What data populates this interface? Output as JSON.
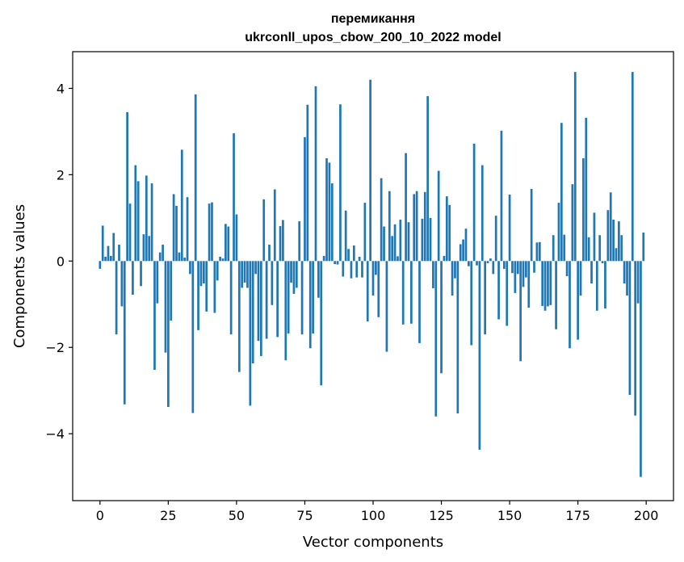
{
  "chart_data": {
    "type": "bar",
    "title": [
      "перемикання",
      "ukrconll_upos_cbow_200_10_2022 model"
    ],
    "xlabel": "Vector components",
    "ylabel": "Components values",
    "xlim": [
      -10,
      210
    ],
    "ylim": [
      -5.55,
      4.85
    ],
    "xticks": [
      0,
      25,
      50,
      75,
      100,
      125,
      150,
      175,
      200
    ],
    "xtick_labels": [
      "0",
      "25",
      "50",
      "75",
      "100",
      "125",
      "150",
      "175",
      "200"
    ],
    "yticks": [
      -4,
      -2,
      0,
      2,
      4
    ],
    "ytick_labels": [
      "−4",
      "−2",
      "0",
      "2",
      "4"
    ],
    "bar_color": "#1f77b4",
    "grid": false,
    "x": [
      0,
      1,
      2,
      3,
      4,
      5,
      6,
      7,
      8,
      9,
      10,
      11,
      12,
      13,
      14,
      15,
      16,
      17,
      18,
      19,
      20,
      21,
      22,
      23,
      24,
      25,
      26,
      27,
      28,
      29,
      30,
      31,
      32,
      33,
      34,
      35,
      36,
      37,
      38,
      39,
      40,
      41,
      42,
      43,
      44,
      45,
      46,
      47,
      48,
      49,
      50,
      51,
      52,
      53,
      54,
      55,
      56,
      57,
      58,
      59,
      60,
      61,
      62,
      63,
      64,
      65,
      66,
      67,
      68,
      69,
      70,
      71,
      72,
      73,
      74,
      75,
      76,
      77,
      78,
      79,
      80,
      81,
      82,
      83,
      84,
      85,
      86,
      87,
      88,
      89,
      90,
      91,
      92,
      93,
      94,
      95,
      96,
      97,
      98,
      99,
      100,
      101,
      102,
      103,
      104,
      105,
      106,
      107,
      108,
      109,
      110,
      111,
      112,
      113,
      114,
      115,
      116,
      117,
      118,
      119,
      120,
      121,
      122,
      123,
      124,
      125,
      126,
      127,
      128,
      129,
      130,
      131,
      132,
      133,
      134,
      135,
      136,
      137,
      138,
      139,
      140,
      141,
      142,
      143,
      144,
      145,
      146,
      147,
      148,
      149,
      150,
      151,
      152,
      153,
      154,
      155,
      156,
      157,
      158,
      159,
      160,
      161,
      162,
      163,
      164,
      165,
      166,
      167,
      168,
      169,
      170,
      171,
      172,
      173,
      174,
      175,
      176,
      177,
      178,
      179,
      180,
      181,
      182,
      183,
      184,
      185,
      186,
      187,
      188,
      189,
      190,
      191,
      192,
      193,
      194,
      195,
      196,
      197,
      198,
      199
    ],
    "values": [
      -0.18,
      0.82,
      0.1,
      0.35,
      0.12,
      0.65,
      -1.7,
      0.38,
      -1.05,
      -3.32,
      3.45,
      1.33,
      -0.78,
      2.22,
      1.85,
      -0.58,
      0.62,
      1.98,
      0.58,
      1.8,
      -2.52,
      -0.98,
      0.2,
      0.38,
      -2.12,
      -3.38,
      -1.38,
      1.55,
      1.28,
      0.2,
      2.58,
      0.08,
      1.48,
      -0.3,
      -3.52,
      3.86,
      -1.6,
      -0.58,
      -0.52,
      -1.17,
      1.33,
      1.36,
      -1.2,
      -0.45,
      0.1,
      0.06,
      0.86,
      0.8,
      -1.7,
      2.96,
      1.08,
      -2.57,
      -0.62,
      -0.5,
      -0.62,
      -3.35,
      -2.37,
      -0.3,
      -1.85,
      -2.2,
      1.43,
      -1.8,
      0.38,
      -1.02,
      1.66,
      -1.76,
      0.81,
      0.95,
      -2.3,
      -1.68,
      -0.5,
      -0.76,
      -0.62,
      0.92,
      -1.7,
      2.87,
      3.62,
      -2.02,
      -1.68,
      4.05,
      -0.85,
      -2.88,
      0.12,
      2.38,
      2.28,
      1.8,
      -0.07,
      -0.08,
      3.63,
      -0.36,
      1.17,
      0.28,
      -0.4,
      0.36,
      -0.38,
      0.1,
      -0.38,
      1.35,
      -1.4,
      4.2,
      -0.8,
      -0.32,
      -1.3,
      1.92,
      0.8,
      -2.1,
      1.62,
      0.58,
      0.85,
      0.11,
      0.96,
      -1.47,
      2.5,
      0.9,
      -1.45,
      1.55,
      1.62,
      -1.9,
      0.98,
      1.6,
      3.82,
      1.0,
      -0.63,
      -3.6,
      2.09,
      -2.6,
      0.12,
      1.5,
      1.3,
      -0.8,
      -0.4,
      -3.53,
      0.39,
      0.5,
      0.75,
      -0.12,
      -1.95,
      2.72,
      -0.1,
      -4.37,
      2.22,
      -1.7,
      -0.05,
      0.06,
      -0.3,
      1.05,
      -1.35,
      3.02,
      -0.18,
      -1.5,
      1.54,
      -0.28,
      -0.74,
      -0.3,
      -2.32,
      -0.6,
      -0.38,
      -1.08,
      1.67,
      -0.27,
      0.43,
      0.44,
      -1.04,
      -1.15,
      -1.05,
      -1.02,
      0.6,
      -1.58,
      1.35,
      3.2,
      0.61,
      -0.35,
      -2.02,
      1.78,
      4.38,
      -1.82,
      -0.8,
      2.38,
      3.32,
      0.55,
      -0.52,
      1.12,
      -1.15,
      0.6,
      -0.05,
      -1.1,
      1.18,
      1.59,
      0.96,
      0.3,
      0.92,
      0.6,
      -0.52,
      -0.8,
      -3.1,
      4.38,
      -3.58,
      -0.98,
      -5.0,
      0.66
    ]
  }
}
